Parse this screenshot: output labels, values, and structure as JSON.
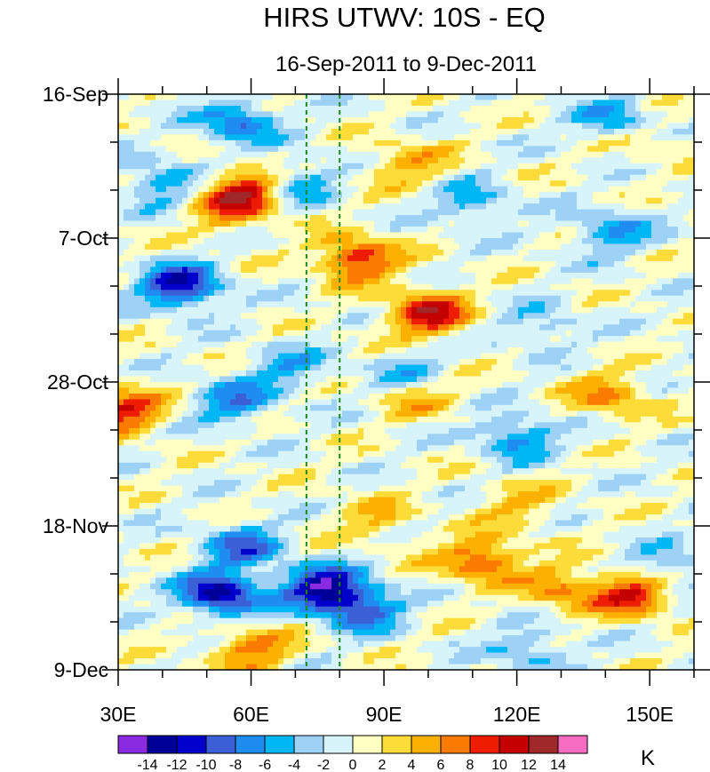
{
  "chart_data": {
    "type": "heatmap",
    "title": "HIRS UTWV: 10S - EQ",
    "subtitle": "16-Sep-2011 to 9-Dec-2011",
    "x_axis": {
      "range": [
        30,
        160
      ],
      "ticks": [
        30,
        60,
        90,
        120,
        150
      ],
      "tick_labels": [
        "30E",
        "60E",
        "90E",
        "120E",
        "150E"
      ]
    },
    "y_axis": {
      "range": [
        "16-Sep-2011",
        "9-Dec-2011"
      ],
      "days_span": 84,
      "ticks_day": [
        0,
        21,
        42,
        63,
        84
      ],
      "tick_labels": [
        "16-Sep",
        "7-Oct",
        "28-Oct",
        "18-Nov",
        "9-Dec"
      ]
    },
    "reference_lines_lon": [
      72.5,
      80
    ],
    "colorbar": {
      "unit": "K",
      "levels": [
        -14,
        -12,
        -10,
        -8,
        -6,
        -4,
        -2,
        0,
        2,
        4,
        6,
        8,
        10,
        12,
        14
      ],
      "labels": [
        "-14",
        "-12",
        "-10",
        "-8",
        "-6",
        "-4",
        "-2",
        "0",
        "2",
        "4",
        "6",
        "8",
        "10",
        "12",
        "14"
      ],
      "colors": [
        "#8a2be2",
        "#000099",
        "#0000cc",
        "#3b5fd6",
        "#1e8cf0",
        "#00b7f5",
        "#9dd2f6",
        "#d8f4fb",
        "#ffffc4",
        "#fddc3a",
        "#fcb000",
        "#fb7a00",
        "#ee1c00",
        "#c40000",
        "#a02828",
        "#f56cc0"
      ]
    },
    "features": [
      {
        "lon": 59,
        "day": 14,
        "value": 10
      },
      {
        "lon": 84,
        "day": 24,
        "value": 10
      },
      {
        "lon": 100,
        "day": 32,
        "value": 11
      },
      {
        "lon": 55,
        "day": 17,
        "value": 5
      },
      {
        "lon": 31,
        "day": 46,
        "value": 10
      },
      {
        "lon": 112,
        "day": 68,
        "value": 9
      },
      {
        "lon": 146,
        "day": 73,
        "value": 10
      },
      {
        "lon": 130,
        "day": 72,
        "value": 6
      },
      {
        "lon": 60,
        "day": 81,
        "value": 7
      },
      {
        "lon": 141,
        "day": 44,
        "value": 6
      },
      {
        "lon": 97,
        "day": 44,
        "value": 5
      },
      {
        "lon": 95,
        "day": 10,
        "value": 5
      },
      {
        "lon": 148,
        "day": 6,
        "value": 4
      },
      {
        "lon": 120,
        "day": 60,
        "value": 4
      },
      {
        "lon": 88,
        "day": 62,
        "value": 4
      },
      {
        "lon": 44,
        "day": 28,
        "value": -12
      },
      {
        "lon": 57,
        "day": 4,
        "value": -8
      },
      {
        "lon": 53,
        "day": 73,
        "value": -13
      },
      {
        "lon": 76,
        "day": 72,
        "value": -13
      },
      {
        "lon": 85,
        "day": 75,
        "value": -9
      },
      {
        "lon": 58,
        "day": 66,
        "value": -8
      },
      {
        "lon": 56,
        "day": 45,
        "value": -7
      },
      {
        "lon": 120,
        "day": 50,
        "value": -7
      },
      {
        "lon": 143,
        "day": 4,
        "value": -7
      },
      {
        "lon": 141,
        "day": 20,
        "value": -6
      },
      {
        "lon": 40,
        "day": 13,
        "value": -6
      },
      {
        "lon": 70,
        "day": 13,
        "value": -6
      },
      {
        "lon": 110,
        "day": 16,
        "value": -5
      },
      {
        "lon": 95,
        "day": 41,
        "value": -5
      },
      {
        "lon": 123,
        "day": 81,
        "value": -5
      },
      {
        "lon": 154,
        "day": 69,
        "value": -5
      },
      {
        "lon": 68,
        "day": 40,
        "value": -5
      },
      {
        "lon": 125,
        "day": 34,
        "value": -4
      }
    ]
  }
}
